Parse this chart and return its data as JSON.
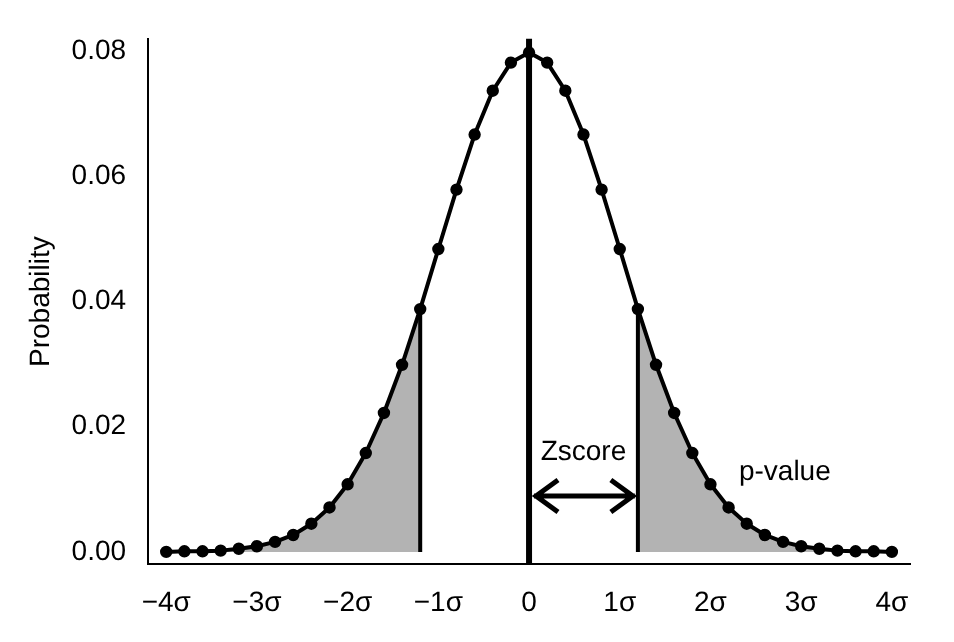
{
  "chart_data": {
    "type": "line",
    "ylabel": "Probability",
    "xlim": [
      -4.2,
      4.2
    ],
    "ylim": [
      -0.002,
      0.082
    ],
    "xticks": [
      {
        "value": -4,
        "label": "−4σ"
      },
      {
        "value": -3,
        "label": "−3σ"
      },
      {
        "value": -2,
        "label": "−2σ"
      },
      {
        "value": -1,
        "label": "−1σ"
      },
      0,
      {
        "value": 1,
        "label": "1σ"
      },
      {
        "value": 2,
        "label": "2σ"
      },
      {
        "value": 3,
        "label": "3σ"
      },
      {
        "value": 4,
        "label": "4σ"
      }
    ],
    "yticks": [
      {
        "value": 0,
        "label": "0.00"
      },
      {
        "value": 0.02,
        "label": "0.02"
      },
      {
        "value": 0.04,
        "label": "0.04"
      },
      {
        "value": 0.06,
        "label": "0.06"
      },
      {
        "value": 0.08,
        "label": "0.08"
      }
    ],
    "grid": false,
    "legend": false,
    "line_style": "solid",
    "series": [
      {
        "type": "area",
        "color": "#b3b3b3",
        "marker": "none",
        "x": [
          -4,
          -3.8,
          -3.6,
          -3.4,
          -3.2,
          -3,
          -2.8,
          -2.6,
          -2.4,
          -2.2,
          -2,
          -1.8,
          -1.6,
          -1.4,
          -1.2
        ],
        "values": [
          0,
          0.0001,
          0.0001,
          0.0002,
          0.0005,
          0.0009,
          0.0016,
          0.0027,
          0.0045,
          0.0071,
          0.0108,
          0.0158,
          0.0222,
          0.0299,
          0.0388
        ]
      },
      {
        "type": "area",
        "color": "#b3b3b3",
        "marker": "none",
        "x": [
          1.2,
          1.4,
          1.6,
          1.8,
          2,
          2.2,
          2.4,
          2.6,
          2.8,
          3,
          3.2,
          3.4,
          3.6,
          3.8,
          4
        ],
        "values": [
          0.0388,
          0.0299,
          0.0222,
          0.0158,
          0.0108,
          0.0071,
          0.0045,
          0.0027,
          0.0016,
          0.0009,
          0.0005,
          0.0002,
          0.0001,
          0.0001,
          0
        ]
      },
      {
        "type": "line",
        "color": "#000000",
        "x": [
          -1.2,
          -1.2
        ],
        "values": [
          0,
          0.0388
        ]
      },
      {
        "type": "line",
        "color": "#000000",
        "x": [
          1.2,
          1.2
        ],
        "values": [
          0,
          0.0388
        ]
      },
      {
        "color": "#000000",
        "marker": "circle",
        "x": [
          -4,
          -3.8,
          -3.6,
          -3.4,
          -3.2,
          -3,
          -2.8,
          -2.6,
          -2.4,
          -2.2,
          -2,
          -1.8,
          -1.6,
          -1.4,
          -1.2,
          -1,
          -0.8,
          -0.6,
          -0.4,
          -0.2,
          0,
          0.2,
          0.4,
          0.6,
          0.8,
          1,
          1.2,
          1.4,
          1.6,
          1.8,
          2,
          2.2,
          2.4,
          2.6,
          2.8,
          3,
          3.2,
          3.4,
          3.6,
          3.8,
          4
        ],
        "values": [
          0,
          0.0001,
          0.0001,
          0.0002,
          0.0005,
          0.0009,
          0.0016,
          0.0027,
          0.0045,
          0.0071,
          0.0108,
          0.0158,
          0.0222,
          0.0299,
          0.0388,
          0.0484,
          0.0579,
          0.0667,
          0.0737,
          0.0782,
          0.0798,
          0.0782,
          0.0737,
          0.0667,
          0.0579,
          0.0484,
          0.0388,
          0.0299,
          0.0222,
          0.0158,
          0.0108,
          0.0071,
          0.0045,
          0.0027,
          0.0016,
          0.0009,
          0.0005,
          0.0002,
          0.0001,
          0.0001,
          0
        ]
      }
    ],
    "ref_lines": [
      {
        "axis": "x",
        "value": 0,
        "color": "#000000"
      }
    ],
    "annotations": [
      "Zscore",
      "p-value"
    ]
  }
}
